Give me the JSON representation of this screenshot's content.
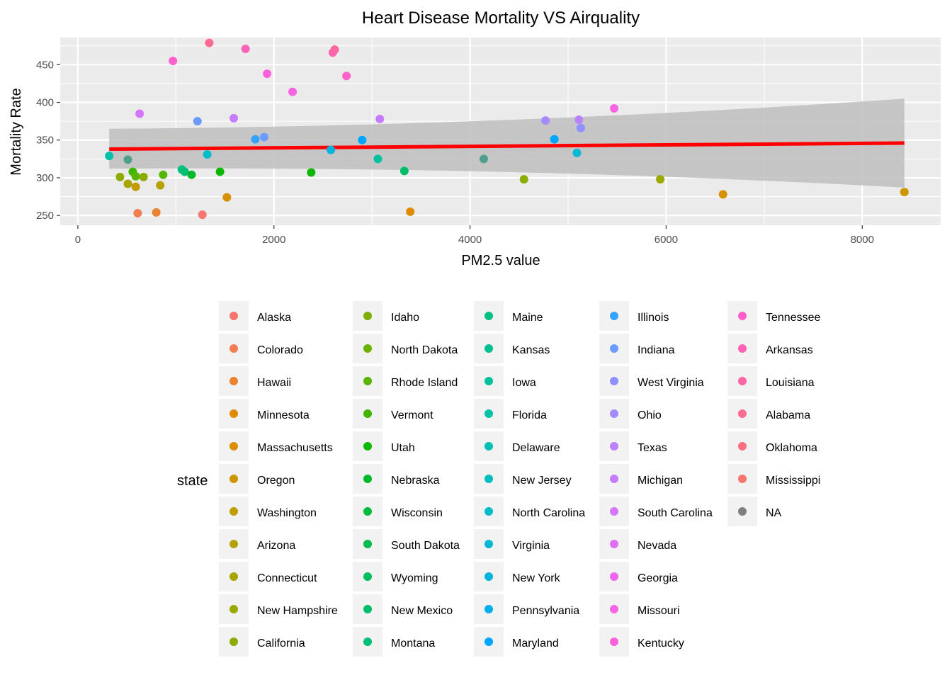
{
  "chart_data": {
    "type": "scatter",
    "title": "Heart Disease Mortality VS Airquality",
    "xlabel": "PM2.5 value",
    "ylabel": "Mortality Rate",
    "xlim": [
      -180,
      8800
    ],
    "ylim": [
      237,
      486
    ],
    "xticks": [
      0,
      2000,
      4000,
      6000,
      8000
    ],
    "yticks": [
      250,
      300,
      350,
      400,
      450
    ],
    "grid": true,
    "trend_line": {
      "method": "linear regression",
      "color": "#ff0000",
      "x_start": 320,
      "y_start": 338,
      "x_end": 8430,
      "y_end": 346,
      "ci_upper_start": 365,
      "ci_lower_start": 312,
      "ci_upper_end": 405,
      "ci_lower_end": 287,
      "ci_color": "#bebebe"
    },
    "legend": {
      "title": "state",
      "placement": "bottom",
      "items": [
        {
          "name": "Alaska",
          "color": "#F8766D"
        },
        {
          "name": "Colorado",
          "color": "#F27D52"
        },
        {
          "name": "Hawaii",
          "color": "#EA8331"
        },
        {
          "name": "Minnesota",
          "color": "#E18A00"
        },
        {
          "name": "Massachusetts",
          "color": "#D89000"
        },
        {
          "name": "Oregon",
          "color": "#CD9600"
        },
        {
          "name": "Washington",
          "color": "#C19C00"
        },
        {
          "name": "Arizona",
          "color": "#B5A100"
        },
        {
          "name": "Connecticut",
          "color": "#A8A400"
        },
        {
          "name": "New Hampshire",
          "color": "#9AA800"
        },
        {
          "name": "California",
          "color": "#8BAB00"
        },
        {
          "name": "Idaho",
          "color": "#7CAE00"
        },
        {
          "name": "North Dakota",
          "color": "#6BB100"
        },
        {
          "name": "Rhode Island",
          "color": "#57B400"
        },
        {
          "name": "Vermont",
          "color": "#3EB600"
        },
        {
          "name": "Utah",
          "color": "#0CB702"
        },
        {
          "name": "Nebraska",
          "color": "#00B92A"
        },
        {
          "name": "Wisconsin",
          "color": "#00BA3E"
        },
        {
          "name": "South Dakota",
          "color": "#00BB4E"
        },
        {
          "name": "Wyoming",
          "color": "#00BC5C"
        },
        {
          "name": "New Mexico",
          "color": "#00BD6A"
        },
        {
          "name": "Montana",
          "color": "#00BE77"
        },
        {
          "name": "Maine",
          "color": "#00C083"
        },
        {
          "name": "Kansas",
          "color": "#00C08F"
        },
        {
          "name": "Iowa",
          "color": "#00C19B"
        },
        {
          "name": "Florida",
          "color": "#00C1A7"
        },
        {
          "name": "Delaware",
          "color": "#00BFB2"
        },
        {
          "name": "New Jersey",
          "color": "#00BEBE"
        },
        {
          "name": "North Carolina",
          "color": "#00BCC8"
        },
        {
          "name": "Virginia",
          "color": "#00B9D3"
        },
        {
          "name": "New York",
          "color": "#00B4DE"
        },
        {
          "name": "Pennsylvania",
          "color": "#00AEE8"
        },
        {
          "name": "Maryland",
          "color": "#00A5FF"
        },
        {
          "name": "Illinois",
          "color": "#35A2FF"
        },
        {
          "name": "Indiana",
          "color": "#6C9BFF"
        },
        {
          "name": "West Virginia",
          "color": "#8F91FF"
        },
        {
          "name": "Ohio",
          "color": "#A58AFF"
        },
        {
          "name": "Texas",
          "color": "#B983FF"
        },
        {
          "name": "Michigan",
          "color": "#C77CFF"
        },
        {
          "name": "South Carolina",
          "color": "#D575FE"
        },
        {
          "name": "Nevada",
          "color": "#E26EF7"
        },
        {
          "name": "Georgia",
          "color": "#EE66EE"
        },
        {
          "name": "Missouri",
          "color": "#F564E3"
        },
        {
          "name": "Kentucky",
          "color": "#FA62DB"
        },
        {
          "name": "Tennessee",
          "color": "#FF61CC"
        },
        {
          "name": "Arkansas",
          "color": "#FF63B6"
        },
        {
          "name": "Louisiana",
          "color": "#FF67A4"
        },
        {
          "name": "Alabama",
          "color": "#FF6C91"
        },
        {
          "name": "Oklahoma",
          "color": "#FC717F"
        },
        {
          "name": "Mississippi",
          "color": "#F8766D"
        },
        {
          "name": "NA",
          "color": "#7F7F7F"
        }
      ]
    },
    "points": [
      {
        "x": 320,
        "y": 329,
        "color": "#00C1A7"
      },
      {
        "x": 430,
        "y": 301,
        "color": "#8BAB00"
      },
      {
        "x": 510,
        "y": 292,
        "color": "#A8A400"
      },
      {
        "x": 510,
        "y": 324,
        "color": "#4F9F8C"
      },
      {
        "x": 560,
        "y": 308,
        "color": "#3EB600"
      },
      {
        "x": 590,
        "y": 288,
        "color": "#C19C00"
      },
      {
        "x": 590,
        "y": 302,
        "color": "#57B400"
      },
      {
        "x": 610,
        "y": 253,
        "color": "#F27D52"
      },
      {
        "x": 630,
        "y": 385,
        "color": "#D575FE"
      },
      {
        "x": 670,
        "y": 301,
        "color": "#8BAB00"
      },
      {
        "x": 800,
        "y": 254,
        "color": "#EA8331"
      },
      {
        "x": 840,
        "y": 290,
        "color": "#B5A100"
      },
      {
        "x": 870,
        "y": 304,
        "color": "#57B400"
      },
      {
        "x": 970,
        "y": 455,
        "color": "#FF61CC"
      },
      {
        "x": 1060,
        "y": 311,
        "color": "#00C083"
      },
      {
        "x": 1090,
        "y": 308,
        "color": "#00BE77"
      },
      {
        "x": 1160,
        "y": 304,
        "color": "#00B92A"
      },
      {
        "x": 1220,
        "y": 375,
        "color": "#6C9BFF"
      },
      {
        "x": 1270,
        "y": 251,
        "color": "#F8766D"
      },
      {
        "x": 1320,
        "y": 331,
        "color": "#00BCC8"
      },
      {
        "x": 1340,
        "y": 479,
        "color": "#FF6C91"
      },
      {
        "x": 1450,
        "y": 308,
        "color": "#0CB702"
      },
      {
        "x": 1520,
        "y": 274,
        "color": "#D89000"
      },
      {
        "x": 1590,
        "y": 379,
        "color": "#C77CFF"
      },
      {
        "x": 1710,
        "y": 471,
        "color": "#FF63B6"
      },
      {
        "x": 1810,
        "y": 351,
        "color": "#35A2FF"
      },
      {
        "x": 1900,
        "y": 354,
        "color": "#6C9BFF"
      },
      {
        "x": 1930,
        "y": 438,
        "color": "#FA62DB"
      },
      {
        "x": 2190,
        "y": 414,
        "color": "#F564E3"
      },
      {
        "x": 2380,
        "y": 307,
        "color": "#0CB702"
      },
      {
        "x": 2580,
        "y": 337,
        "color": "#00B4DE"
      },
      {
        "x": 2600,
        "y": 466,
        "color": "#FF63B6"
      },
      {
        "x": 2620,
        "y": 470,
        "color": "#FF67A4"
      },
      {
        "x": 2740,
        "y": 435,
        "color": "#FF61CC"
      },
      {
        "x": 2900,
        "y": 350,
        "color": "#00A5FF"
      },
      {
        "x": 3060,
        "y": 325,
        "color": "#00C19B"
      },
      {
        "x": 3080,
        "y": 378,
        "color": "#C77CFF"
      },
      {
        "x": 3330,
        "y": 309,
        "color": "#00BD6A"
      },
      {
        "x": 3390,
        "y": 255,
        "color": "#E18A00"
      },
      {
        "x": 4140,
        "y": 325,
        "color": "#4F9F8C"
      },
      {
        "x": 4550,
        "y": 298,
        "color": "#8BAB00"
      },
      {
        "x": 4770,
        "y": 376,
        "color": "#A58AFF"
      },
      {
        "x": 4860,
        "y": 351,
        "color": "#00A5FF"
      },
      {
        "x": 5090,
        "y": 333,
        "color": "#00B9D3"
      },
      {
        "x": 5110,
        "y": 377,
        "color": "#B983FF"
      },
      {
        "x": 5130,
        "y": 366,
        "color": "#8F91FF"
      },
      {
        "x": 5470,
        "y": 392,
        "color": "#F564E3"
      },
      {
        "x": 5940,
        "y": 298,
        "color": "#9AA800"
      },
      {
        "x": 6580,
        "y": 278,
        "color": "#D89000"
      },
      {
        "x": 8430,
        "y": 281,
        "color": "#CD9600"
      }
    ]
  }
}
